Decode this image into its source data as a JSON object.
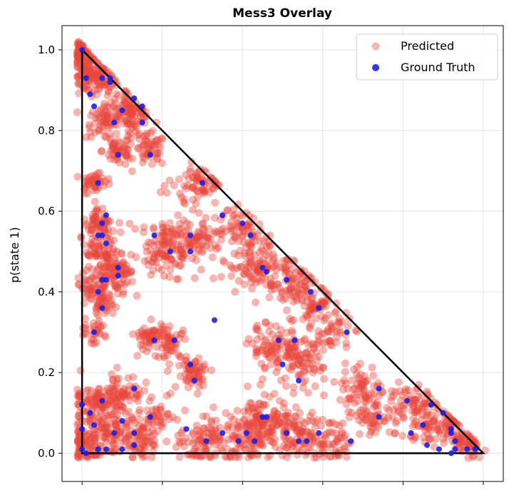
{
  "chart_data": {
    "type": "scatter",
    "title": "Mess3 Overlay",
    "xlabel": "",
    "ylabel": "p(state 1)",
    "xlim": [
      -0.05,
      1.05
    ],
    "ylim": [
      -0.07,
      1.06
    ],
    "xticks": [
      0.0,
      0.2,
      0.4,
      0.6,
      0.8,
      1.0
    ],
    "yticks": [
      0.0,
      0.2,
      0.4,
      0.6,
      0.8,
      1.0
    ],
    "ytick_labels": [
      "0.0",
      "0.2",
      "0.4",
      "0.6",
      "0.8",
      "1.0"
    ],
    "grid": true,
    "legend_position": "top-right",
    "simplex_outline": [
      [
        0,
        0
      ],
      [
        0,
        1
      ],
      [
        1,
        0
      ]
    ],
    "series": [
      {
        "name": "Predicted",
        "color": "#e8453c",
        "alpha": 0.4,
        "clusters": [
          [
            0.0,
            0.99,
            0.02,
            80
          ],
          [
            0.02,
            0.93,
            0.02,
            60
          ],
          [
            0.05,
            0.93,
            0.02,
            50
          ],
          [
            0.1,
            0.86,
            0.018,
            40
          ],
          [
            0.13,
            0.83,
            0.02,
            60
          ],
          [
            0.05,
            0.82,
            0.02,
            50
          ],
          [
            0.09,
            0.75,
            0.02,
            50
          ],
          [
            0.17,
            0.75,
            0.02,
            50
          ],
          [
            0.03,
            0.67,
            0.015,
            40
          ],
          [
            0.04,
            0.57,
            0.02,
            60
          ],
          [
            0.05,
            0.49,
            0.025,
            80
          ],
          [
            0.09,
            0.44,
            0.025,
            70
          ],
          [
            0.03,
            0.41,
            0.02,
            50
          ],
          [
            0.05,
            0.36,
            0.015,
            30
          ],
          [
            0.03,
            0.3,
            0.015,
            30
          ],
          [
            0.21,
            0.51,
            0.035,
            120
          ],
          [
            0.29,
            0.53,
            0.025,
            60
          ],
          [
            0.29,
            0.67,
            0.03,
            70
          ],
          [
            0.39,
            0.56,
            0.025,
            60
          ],
          [
            0.43,
            0.47,
            0.035,
            100
          ],
          [
            0.52,
            0.42,
            0.035,
            90
          ],
          [
            0.58,
            0.37,
            0.025,
            50
          ],
          [
            0.62,
            0.3,
            0.025,
            50
          ],
          [
            0.48,
            0.26,
            0.03,
            80
          ],
          [
            0.54,
            0.22,
            0.03,
            80
          ],
          [
            0.17,
            0.29,
            0.02,
            50
          ],
          [
            0.22,
            0.27,
            0.02,
            50
          ],
          [
            0.28,
            0.2,
            0.02,
            60
          ],
          [
            0.03,
            0.12,
            0.03,
            100
          ],
          [
            0.1,
            0.15,
            0.025,
            70
          ],
          [
            0.07,
            0.05,
            0.03,
            90
          ],
          [
            0.15,
            0.04,
            0.025,
            60
          ],
          [
            0.18,
            0.09,
            0.02,
            40
          ],
          [
            0.0,
            0.02,
            0.025,
            80
          ],
          [
            0.3,
            0.03,
            0.03,
            80
          ],
          [
            0.4,
            0.04,
            0.035,
            110
          ],
          [
            0.46,
            0.08,
            0.03,
            90
          ],
          [
            0.53,
            0.05,
            0.03,
            80
          ],
          [
            0.62,
            0.03,
            0.03,
            70
          ],
          [
            0.7,
            0.16,
            0.03,
            70
          ],
          [
            0.72,
            0.08,
            0.02,
            40
          ],
          [
            0.82,
            0.12,
            0.03,
            70
          ],
          [
            0.86,
            0.06,
            0.02,
            40
          ],
          [
            0.92,
            0.06,
            0.025,
            60
          ],
          [
            0.96,
            0.02,
            0.02,
            50
          ]
        ]
      },
      {
        "name": "Ground Truth",
        "color": "#1f1fe0",
        "alpha": 0.9,
        "points": [
          [
            0.0,
            1.0
          ],
          [
            0.01,
            0.93
          ],
          [
            0.02,
            0.89
          ],
          [
            0.03,
            0.86
          ],
          [
            0.05,
            0.93
          ],
          [
            0.07,
            0.93
          ],
          [
            0.08,
            0.82
          ],
          [
            0.07,
            0.92
          ],
          [
            0.1,
            0.85
          ],
          [
            0.13,
            0.88
          ],
          [
            0.15,
            0.82
          ],
          [
            0.15,
            0.86
          ],
          [
            0.09,
            0.74
          ],
          [
            0.17,
            0.74
          ],
          [
            0.04,
            0.67
          ],
          [
            0.05,
            0.57
          ],
          [
            0.06,
            0.59
          ],
          [
            0.04,
            0.54
          ],
          [
            0.05,
            0.54
          ],
          [
            0.06,
            0.52
          ],
          [
            0.09,
            0.46
          ],
          [
            0.09,
            0.44
          ],
          [
            0.05,
            0.43
          ],
          [
            0.06,
            0.43
          ],
          [
            0.04,
            0.4
          ],
          [
            0.05,
            0.36
          ],
          [
            0.03,
            0.3
          ],
          [
            0.18,
            0.54
          ],
          [
            0.22,
            0.5
          ],
          [
            0.27,
            0.5
          ],
          [
            0.27,
            0.54
          ],
          [
            0.3,
            0.67
          ],
          [
            0.35,
            0.59
          ],
          [
            0.4,
            0.57
          ],
          [
            0.42,
            0.54
          ],
          [
            0.45,
            0.46
          ],
          [
            0.46,
            0.45
          ],
          [
            0.51,
            0.43
          ],
          [
            0.57,
            0.4
          ],
          [
            0.59,
            0.36
          ],
          [
            0.66,
            0.3
          ],
          [
            0.33,
            0.33
          ],
          [
            0.18,
            0.28
          ],
          [
            0.23,
            0.28
          ],
          [
            0.27,
            0.22
          ],
          [
            0.28,
            0.18
          ],
          [
            0.49,
            0.28
          ],
          [
            0.53,
            0.28
          ],
          [
            0.5,
            0.22
          ],
          [
            0.54,
            0.18
          ],
          [
            0.0,
            0.12
          ],
          [
            0.02,
            0.1
          ],
          [
            0.05,
            0.13
          ],
          [
            0.03,
            0.07
          ],
          [
            0.0,
            0.06
          ],
          [
            0.0,
            0.01
          ],
          [
            0.01,
            0.0
          ],
          [
            0.04,
            0.01
          ],
          [
            0.06,
            0.01
          ],
          [
            0.08,
            0.05
          ],
          [
            0.1,
            0.08
          ],
          [
            0.1,
            0.01
          ],
          [
            0.13,
            0.02
          ],
          [
            0.13,
            0.16
          ],
          [
            0.13,
            0.05
          ],
          [
            0.17,
            0.09
          ],
          [
            0.26,
            0.06
          ],
          [
            0.31,
            0.03
          ],
          [
            0.35,
            0.05
          ],
          [
            0.39,
            0.03
          ],
          [
            0.41,
            0.05
          ],
          [
            0.43,
            0.03
          ],
          [
            0.45,
            0.09
          ],
          [
            0.46,
            0.09
          ],
          [
            0.51,
            0.05
          ],
          [
            0.54,
            0.03
          ],
          [
            0.56,
            0.03
          ],
          [
            0.59,
            0.05
          ],
          [
            0.67,
            0.03
          ],
          [
            0.74,
            0.16
          ],
          [
            0.74,
            0.09
          ],
          [
            0.81,
            0.13
          ],
          [
            0.82,
            0.05
          ],
          [
            0.85,
            0.07
          ],
          [
            0.86,
            0.02
          ],
          [
            0.87,
            0.12
          ],
          [
            0.9,
            0.1
          ],
          [
            0.89,
            0.01
          ],
          [
            0.92,
            0.06
          ],
          [
            0.92,
            0.05
          ],
          [
            0.93,
            0.03
          ],
          [
            0.93,
            0.01
          ],
          [
            0.92,
            0.0
          ],
          [
            0.96,
            0.01
          ],
          [
            0.98,
            0.01
          ]
        ]
      }
    ]
  }
}
